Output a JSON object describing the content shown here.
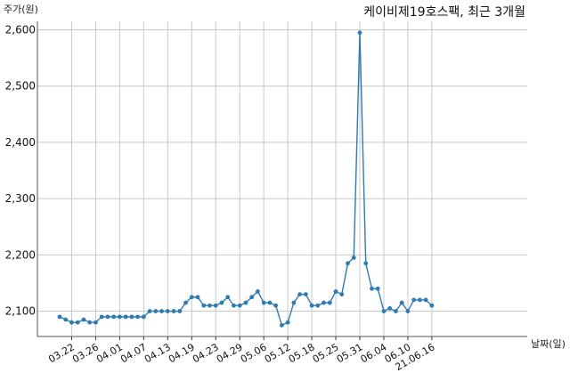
{
  "chart_data": {
    "type": "line",
    "title": "케이비제19호스팩, 최근 3개월",
    "ylabel": "주가(원)",
    "xlabel": "날짜(일)",
    "ylim": [
      2055,
      2615
    ],
    "yticks": [
      2100,
      2200,
      2300,
      2400,
      2500,
      2600
    ],
    "ytick_labels": [
      "2,100",
      "2,200",
      "2,300",
      "2,400",
      "2,500",
      "2,600"
    ],
    "xtick_labels": [
      "03.22",
      "03.26",
      "04.01",
      "04.07",
      "04.13",
      "04.19",
      "04.23",
      "04.29",
      "05.06",
      "05.12",
      "05.18",
      "05.25",
      "05.31",
      "06.04",
      "06.10",
      "21.06.16"
    ],
    "xtick_index": [
      2,
      6,
      10,
      14,
      18,
      22,
      26,
      30,
      34,
      38,
      42,
      46,
      50,
      54,
      58,
      62
    ],
    "grid": true,
    "color": "#2e7bb4",
    "series": [
      {
        "values": [
          2090,
          2085,
          2080,
          2080,
          2085,
          2080,
          2080,
          2090,
          2090,
          2090,
          2090,
          2090,
          2090,
          2090,
          2090,
          2100,
          2100,
          2100,
          2100,
          2100,
          2100,
          2115,
          2125,
          2125,
          2110,
          2110,
          2110,
          2115,
          2125,
          2110,
          2110,
          2115,
          2125,
          2135,
          2115,
          2115,
          2110,
          2075,
          2080,
          2115,
          2130,
          2130,
          2110,
          2110,
          2115,
          2115,
          2135,
          2130,
          2185,
          2195,
          2595,
          2185,
          2140,
          2140,
          2100,
          2105,
          2100,
          2115,
          2100,
          2120,
          2120,
          2120,
          2110
        ]
      }
    ]
  }
}
